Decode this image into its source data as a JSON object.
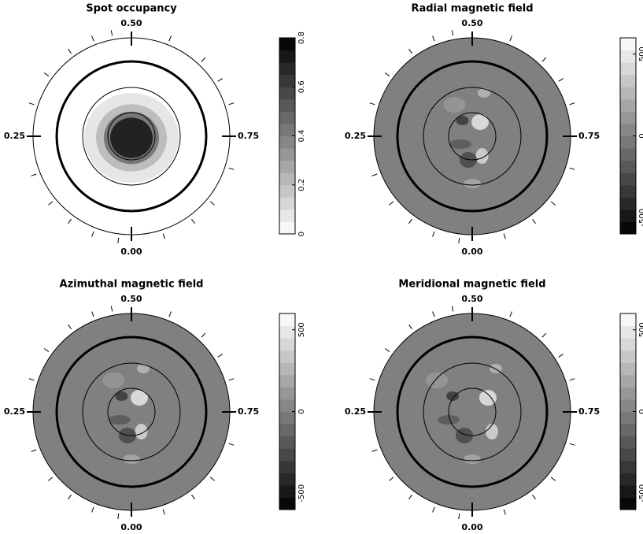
{
  "chart_data": [
    {
      "type": "polar-map",
      "title": "Spot occupancy",
      "phase_labels": [
        "0.00",
        "0.25",
        "0.50",
        "0.75"
      ],
      "clim": [
        0,
        0.8
      ],
      "cticks": [
        0,
        0.2,
        0.4,
        0.6,
        0.8
      ],
      "cmap": "gray_r",
      "observation_phases": [
        0.02,
        0.06,
        0.1,
        0.14,
        0.19,
        0.3,
        0.35,
        0.4,
        0.44,
        0.47,
        0.56,
        0.62,
        0.66,
        0.7,
        0.8,
        0.86,
        0.9,
        0.95
      ]
    },
    {
      "type": "polar-map",
      "title": "Radial magnetic field",
      "phase_labels": [
        "0.00",
        "0.25",
        "0.50",
        "0.75"
      ],
      "clim": [
        -600,
        600
      ],
      "cticks": [
        -500,
        0,
        500
      ],
      "cmap": "gray",
      "observation_phases": [
        0.02,
        0.06,
        0.1,
        0.14,
        0.19,
        0.3,
        0.35,
        0.4,
        0.44,
        0.47,
        0.56,
        0.62,
        0.66,
        0.7,
        0.8,
        0.86,
        0.9,
        0.95
      ]
    },
    {
      "type": "polar-map",
      "title": "Azimuthal magnetic field",
      "phase_labels": [
        "0.00",
        "0.25",
        "0.50",
        "0.75"
      ],
      "clim": [
        -600,
        600
      ],
      "cticks": [
        -500,
        0,
        500
      ],
      "cmap": "gray",
      "observation_phases": [
        0.02,
        0.06,
        0.1,
        0.14,
        0.19,
        0.3,
        0.35,
        0.4,
        0.44,
        0.47,
        0.56,
        0.62,
        0.66,
        0.7,
        0.8,
        0.86,
        0.9,
        0.95
      ]
    },
    {
      "type": "polar-map",
      "title": "Meridional magnetic field",
      "phase_labels": [
        "0.00",
        "0.25",
        "0.50",
        "0.75"
      ],
      "clim": [
        -600,
        600
      ],
      "cticks": [
        -500,
        0,
        500
      ],
      "cmap": "gray",
      "observation_phases": [
        0.02,
        0.06,
        0.1,
        0.14,
        0.19,
        0.3,
        0.35,
        0.4,
        0.44,
        0.47,
        0.56,
        0.62,
        0.66,
        0.7,
        0.8,
        0.86,
        0.9,
        0.95
      ]
    }
  ]
}
